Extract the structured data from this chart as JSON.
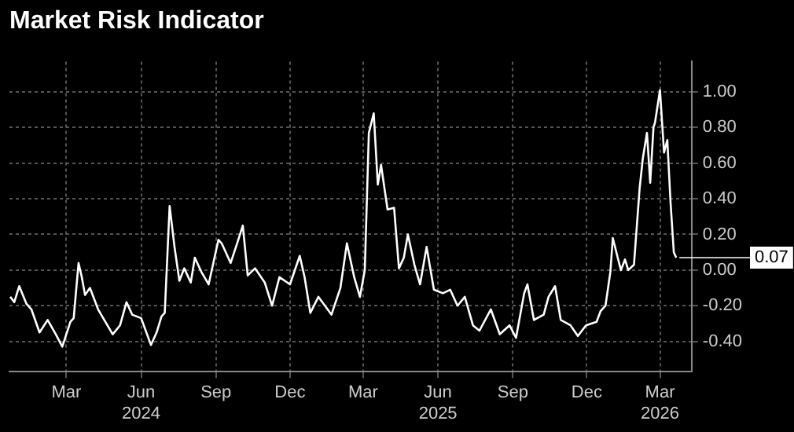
{
  "chart_data": {
    "type": "line",
    "title": "Market Risk Indicator",
    "x": [
      "2023-12-23",
      "2023-12-28",
      "2024-01-03",
      "2024-01-12",
      "2024-01-18",
      "2024-01-28",
      "2024-02-07",
      "2024-02-17",
      "2024-02-25",
      "2024-03-06",
      "2024-03-10",
      "2024-03-16",
      "2024-03-20",
      "2024-03-24",
      "2024-03-30",
      "2024-04-09",
      "2024-04-27",
      "2024-05-06",
      "2024-05-14",
      "2024-05-21",
      "2024-06-01",
      "2024-06-13",
      "2024-06-20",
      "2024-06-26",
      "2024-06-30",
      "2024-07-06",
      "2024-07-12",
      "2024-07-18",
      "2024-07-24",
      "2024-08-01",
      "2024-08-06",
      "2024-08-14",
      "2024-08-23",
      "2024-09-04",
      "2024-09-08",
      "2024-09-19",
      "2024-09-27",
      "2024-10-04",
      "2024-10-10",
      "2024-10-19",
      "2024-10-31",
      "2024-11-09",
      "2024-11-18",
      "2024-12-01",
      "2024-12-13",
      "2024-12-19",
      "2024-12-26",
      "2025-01-05",
      "2025-01-21",
      "2025-02-01",
      "2025-02-09",
      "2025-02-18",
      "2025-02-25",
      "2025-03-03",
      "2025-03-08",
      "2025-03-14",
      "2025-03-19",
      "2025-03-23",
      "2025-03-31",
      "2025-04-08",
      "2025-04-14",
      "2025-04-20",
      "2025-04-25",
      "2025-05-03",
      "2025-05-10",
      "2025-05-18",
      "2025-05-27",
      "2025-06-07",
      "2025-06-16",
      "2025-06-25",
      "2025-07-04",
      "2025-07-14",
      "2025-07-22",
      "2025-08-05",
      "2025-08-16",
      "2025-08-28",
      "2025-09-05",
      "2025-09-15",
      "2025-09-19",
      "2025-09-27",
      "2025-10-09",
      "2025-10-15",
      "2025-10-23",
      "2025-10-30",
      "2025-11-11",
      "2025-11-20",
      "2025-11-30",
      "2025-12-13",
      "2025-12-18",
      "2025-12-24",
      "2025-12-30",
      "2026-01-02",
      "2026-01-08",
      "2026-01-12",
      "2026-01-17",
      "2026-01-21",
      "2026-01-28",
      "2026-02-04",
      "2026-02-08",
      "2026-02-13",
      "2026-02-17",
      "2026-02-21",
      "2026-02-23",
      "2026-03-01",
      "2026-03-06",
      "2026-03-10",
      "2026-03-14",
      "2026-03-18",
      "2026-03-21"
    ],
    "values": [
      -0.15,
      -0.18,
      -0.09,
      -0.19,
      -0.22,
      -0.35,
      -0.28,
      -0.36,
      -0.43,
      -0.29,
      -0.27,
      0.04,
      -0.04,
      -0.14,
      -0.1,
      -0.22,
      -0.36,
      -0.31,
      -0.18,
      -0.25,
      -0.27,
      -0.42,
      -0.35,
      -0.26,
      -0.24,
      0.36,
      0.13,
      -0.06,
      0.01,
      -0.07,
      0.07,
      -0.01,
      -0.08,
      0.17,
      0.15,
      0.04,
      0.15,
      0.25,
      -0.03,
      0.01,
      -0.07,
      -0.2,
      -0.04,
      -0.08,
      0.08,
      -0.04,
      -0.24,
      -0.15,
      -0.25,
      -0.1,
      0.15,
      -0.04,
      -0.15,
      0.0,
      0.77,
      0.88,
      0.48,
      0.59,
      0.34,
      0.35,
      0.01,
      0.07,
      0.2,
      0.03,
      -0.08,
      0.13,
      -0.11,
      -0.13,
      -0.11,
      -0.2,
      -0.15,
      -0.31,
      -0.34,
      -0.22,
      -0.36,
      -0.31,
      -0.38,
      -0.13,
      -0.08,
      -0.28,
      -0.25,
      -0.15,
      -0.09,
      -0.28,
      -0.31,
      -0.37,
      -0.31,
      -0.29,
      -0.23,
      -0.2,
      -0.01,
      0.18,
      0.07,
      0.0,
      0.06,
      0.0,
      0.03,
      0.46,
      0.63,
      0.77,
      0.49,
      0.8,
      0.83,
      1.01,
      0.66,
      0.73,
      0.38,
      0.1,
      0.07
    ],
    "color": "#ffffff",
    "xlim": [
      "2023-12-22",
      "2026-04-09"
    ],
    "xticks": [
      {
        "value": "2024-03-01",
        "label": "Mar"
      },
      {
        "value": "2024-06-01",
        "label": "Jun\n2024"
      },
      {
        "value": "2024-09-01",
        "label": "Sep"
      },
      {
        "value": "2024-12-01",
        "label": "Dec"
      },
      {
        "value": "2025-03-01",
        "label": "Mar"
      },
      {
        "value": "2025-06-01",
        "label": "Jun\n2025"
      },
      {
        "value": "2025-09-01",
        "label": "Sep"
      },
      {
        "value": "2025-12-01",
        "label": "Dec"
      },
      {
        "value": "2026-03-01",
        "label": "Mar\n2026"
      }
    ],
    "ylim": [
      -0.57,
      1.17
    ],
    "yticks": [
      {
        "value": -0.4,
        "label": "-0.40"
      },
      {
        "value": -0.2,
        "label": "-0.20"
      },
      {
        "value": 0,
        "label": "0.00"
      },
      {
        "value": 0.2,
        "label": "0.20"
      },
      {
        "value": 0.4,
        "label": "0.40"
      },
      {
        "value": 0.6,
        "label": "0.60"
      },
      {
        "value": 0.8,
        "label": "0.80"
      },
      {
        "value": 1.0,
        "label": "1.00"
      }
    ],
    "grid": true,
    "legend": false,
    "annotations": [
      "0.07"
    ]
  }
}
